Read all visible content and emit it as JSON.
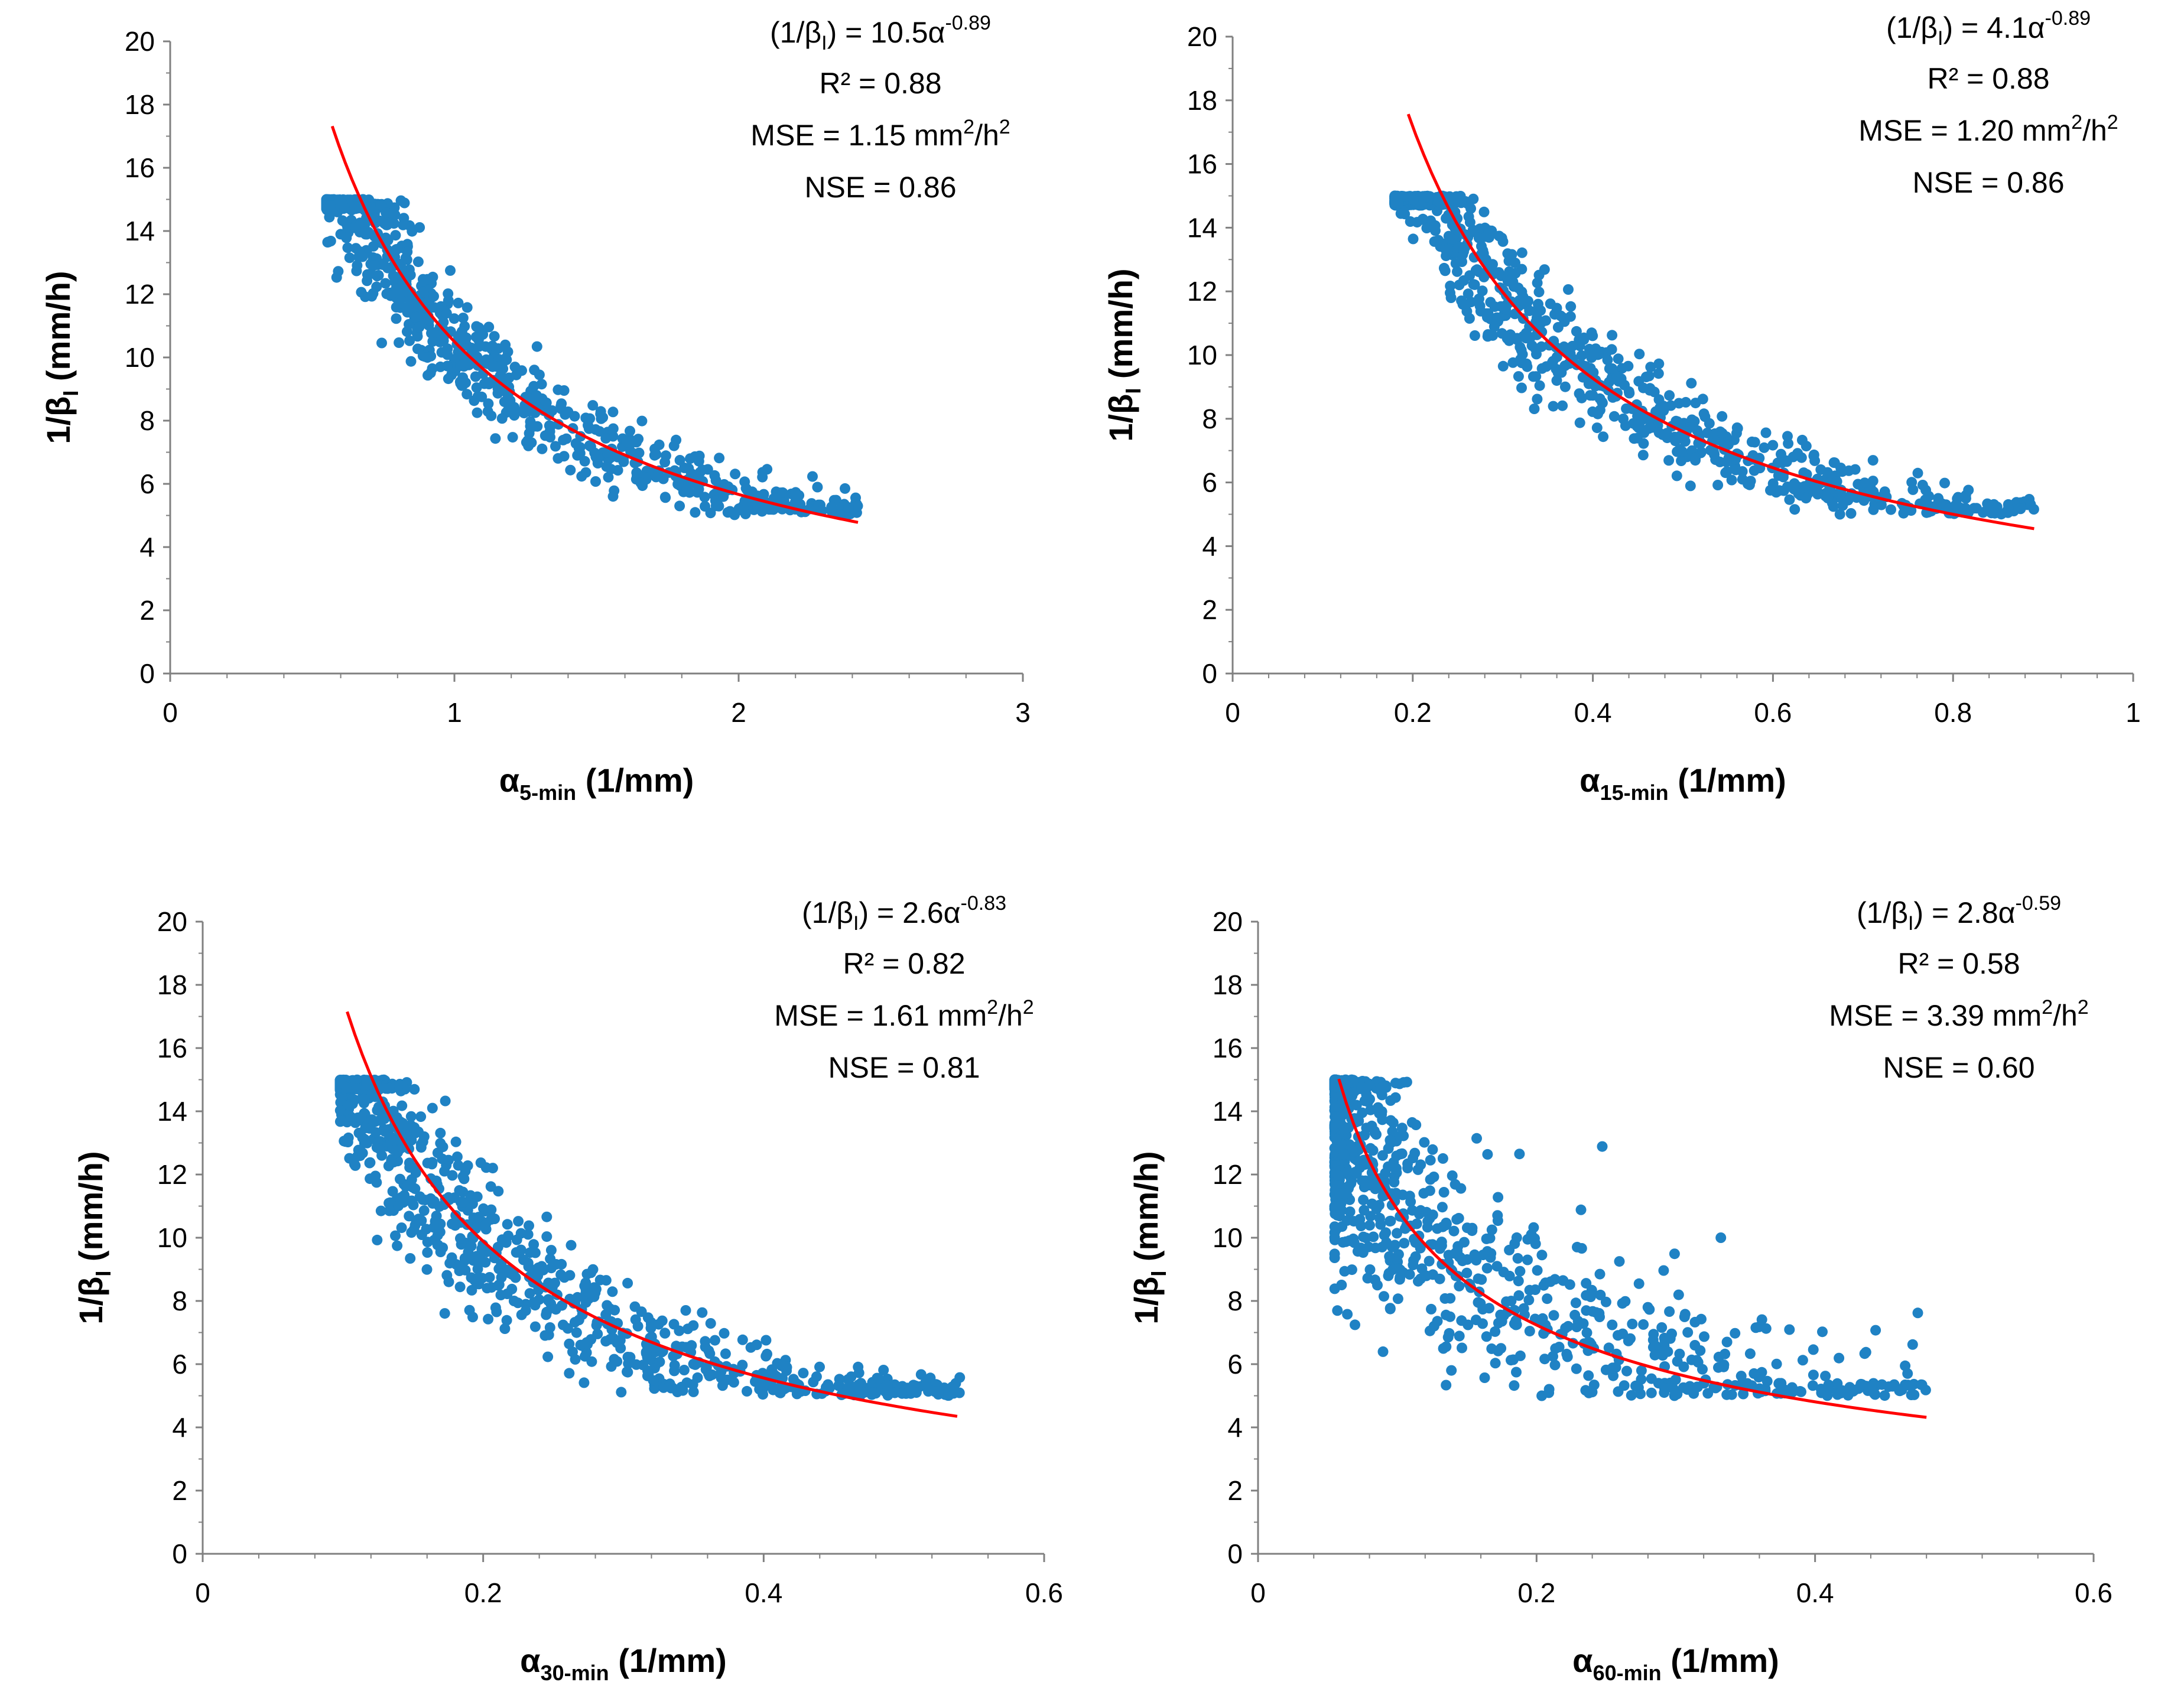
{
  "colors": {
    "points": "#1f82c4",
    "fit": "#ff0000",
    "axis": "#808080"
  },
  "chart_data": [
    {
      "type": "scatter",
      "x_greek": "α",
      "x_sub": "5-min",
      "x_unit": " (1/mm)",
      "y_main": "1/β",
      "y_sub": "I",
      "y_unit": " (mm/h)",
      "xlim": [
        0,
        3
      ],
      "ylim": [
        0,
        20
      ],
      "xticks": [
        "0",
        "1",
        "2",
        "3"
      ],
      "yticks": [
        "0",
        "2",
        "4",
        "6",
        "8",
        "10",
        "12",
        "14",
        "16",
        "18",
        "20"
      ],
      "fit": {
        "a": 10.5,
        "b": -0.89,
        "xmin": 0.57,
        "xmax": 2.42
      },
      "cloud": {
        "count": 1100,
        "xmin": 0.55,
        "xmax": 2.42,
        "ycap": 15.0,
        "ymin": 5.0,
        "spread": 0.14,
        "skew": 3
      },
      "annotation": {
        "eq_pre": "(1/β",
        "eq_sub": "I",
        "eq_mid": ") = 10.5α",
        "eq_exp": "-0.89",
        "r2": "R² = 0.88",
        "mse_pre": "MSE = 1.15 mm",
        "mse_sq1": "2",
        "mse_mid": "/h",
        "mse_sq2": "2",
        "nse": "NSE = 0.86"
      }
    },
    {
      "type": "scatter",
      "x_greek": "α",
      "x_sub": "15-min",
      "x_unit": " (1/mm)",
      "y_main": "1/β",
      "y_sub": "I",
      "y_unit": " (mm/h)",
      "xlim": [
        0,
        1
      ],
      "ylim": [
        0,
        20
      ],
      "xticks": [
        "0",
        "0.2",
        "0.4",
        "0.6",
        "0.8",
        "1"
      ],
      "yticks": [
        "0",
        "2",
        "4",
        "6",
        "8",
        "10",
        "12",
        "14",
        "16",
        "18",
        "20"
      ],
      "fit": {
        "a": 4.1,
        "b": -0.89,
        "xmin": 0.195,
        "xmax": 0.89
      },
      "cloud": {
        "count": 1100,
        "xmin": 0.18,
        "xmax": 0.89,
        "ycap": 15.0,
        "ymin": 5.0,
        "spread": 0.15,
        "skew": 3
      },
      "annotation": {
        "eq_pre": "(1/β",
        "eq_sub": "I",
        "eq_mid": ") = 4.1α",
        "eq_exp": "-0.89",
        "r2": "R² = 0.88",
        "mse_pre": "MSE = 1.20 mm",
        "mse_sq1": "2",
        "mse_mid": "/h",
        "mse_sq2": "2",
        "nse": "NSE = 0.86"
      }
    },
    {
      "type": "scatter",
      "x_greek": "α",
      "x_sub": "30-min",
      "x_unit": " (1/mm)",
      "y_main": "1/β",
      "y_sub": "I",
      "y_unit": " (mm/h)",
      "xlim": [
        0,
        0.6
      ],
      "ylim": [
        0,
        20
      ],
      "xticks": [
        "0",
        "0.2",
        "0.4",
        "0.6"
      ],
      "yticks": [
        "0",
        "2",
        "4",
        "6",
        "8",
        "10",
        "12",
        "14",
        "16",
        "18",
        "20"
      ],
      "fit": {
        "a": 2.6,
        "b": -0.83,
        "xmin": 0.103,
        "xmax": 0.538
      },
      "cloud": {
        "count": 1100,
        "xmin": 0.098,
        "xmax": 0.54,
        "ycap": 15.0,
        "ymin": 5.0,
        "spread": 0.2,
        "skew": 3
      },
      "annotation": {
        "eq_pre": "(1/β",
        "eq_sub": "I",
        "eq_mid": ") = 2.6α",
        "eq_exp": "-0.83",
        "r2": "R² = 0.82",
        "mse_pre": "MSE = 1.61 mm",
        "mse_sq1": "2",
        "mse_mid": "/h",
        "mse_sq2": "2",
        "nse": "NSE = 0.81"
      }
    },
    {
      "type": "scatter",
      "x_greek": "α",
      "x_sub": "60-min",
      "x_unit": " (1/mm)",
      "y_main": "1/β",
      "y_sub": "I",
      "y_unit": " (mm/h)",
      "xlim": [
        0,
        0.6
      ],
      "ylim": [
        0,
        20
      ],
      "xticks": [
        "0",
        "0.2",
        "0.4",
        "0.6"
      ],
      "yticks": [
        "0",
        "2",
        "4",
        "6",
        "8",
        "10",
        "12",
        "14",
        "16",
        "18",
        "20"
      ],
      "fit": {
        "a": 2.8,
        "b": -0.59,
        "xmin": 0.058,
        "xmax": 0.48
      },
      "cloud": {
        "count": 1100,
        "xmin": 0.055,
        "xmax": 0.48,
        "ycap": 15.0,
        "ymin": 5.0,
        "spread": 0.3,
        "skew": 4
      },
      "annotation": {
        "eq_pre": "(1/β",
        "eq_sub": "I",
        "eq_mid": ") = 2.8α",
        "eq_exp": "-0.59",
        "r2": "R² = 0.58",
        "mse_pre": "MSE = 3.39 mm",
        "mse_sq1": "2",
        "mse_mid": "/h",
        "mse_sq2": "2",
        "nse": "NSE = 0.60"
      }
    }
  ]
}
